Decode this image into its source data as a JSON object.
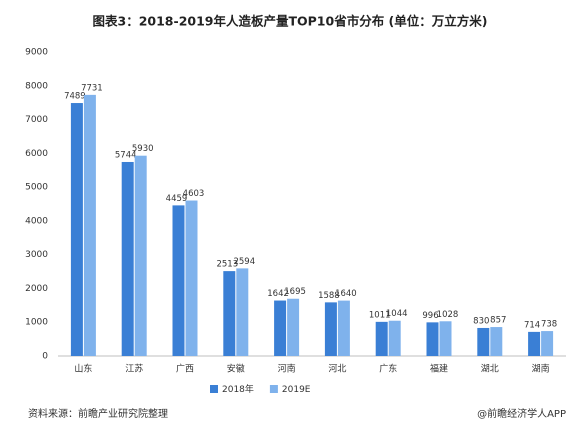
{
  "chart_data": {
    "type": "bar",
    "title": "图表3：2018-2019年人造板产量TOP10省市分布 (单位：万立方米)",
    "categories": [
      "山东",
      "江苏",
      "广西",
      "安徽",
      "河南",
      "河北",
      "广东",
      "福建",
      "湖北",
      "湖南"
    ],
    "series": [
      {
        "name": "2018年",
        "color": "#3a7fd5",
        "values": [
          7489,
          5744,
          4459,
          2513,
          1642,
          1588,
          1011,
          996,
          830,
          714
        ]
      },
      {
        "name": "2019E",
        "color": "#7fb2ec",
        "values": [
          7731,
          5930,
          4603,
          2594,
          1695,
          1640,
          1044,
          1028,
          857,
          738
        ]
      }
    ],
    "ylim": [
      0,
      9000
    ],
    "yticks": [
      0,
      1000,
      2000,
      3000,
      4000,
      5000,
      6000,
      7000,
      8000,
      9000
    ],
    "legend": "bottom",
    "source": "资料来源：前瞻产业研究院整理",
    "credit": "@前瞻经济学人APP"
  }
}
